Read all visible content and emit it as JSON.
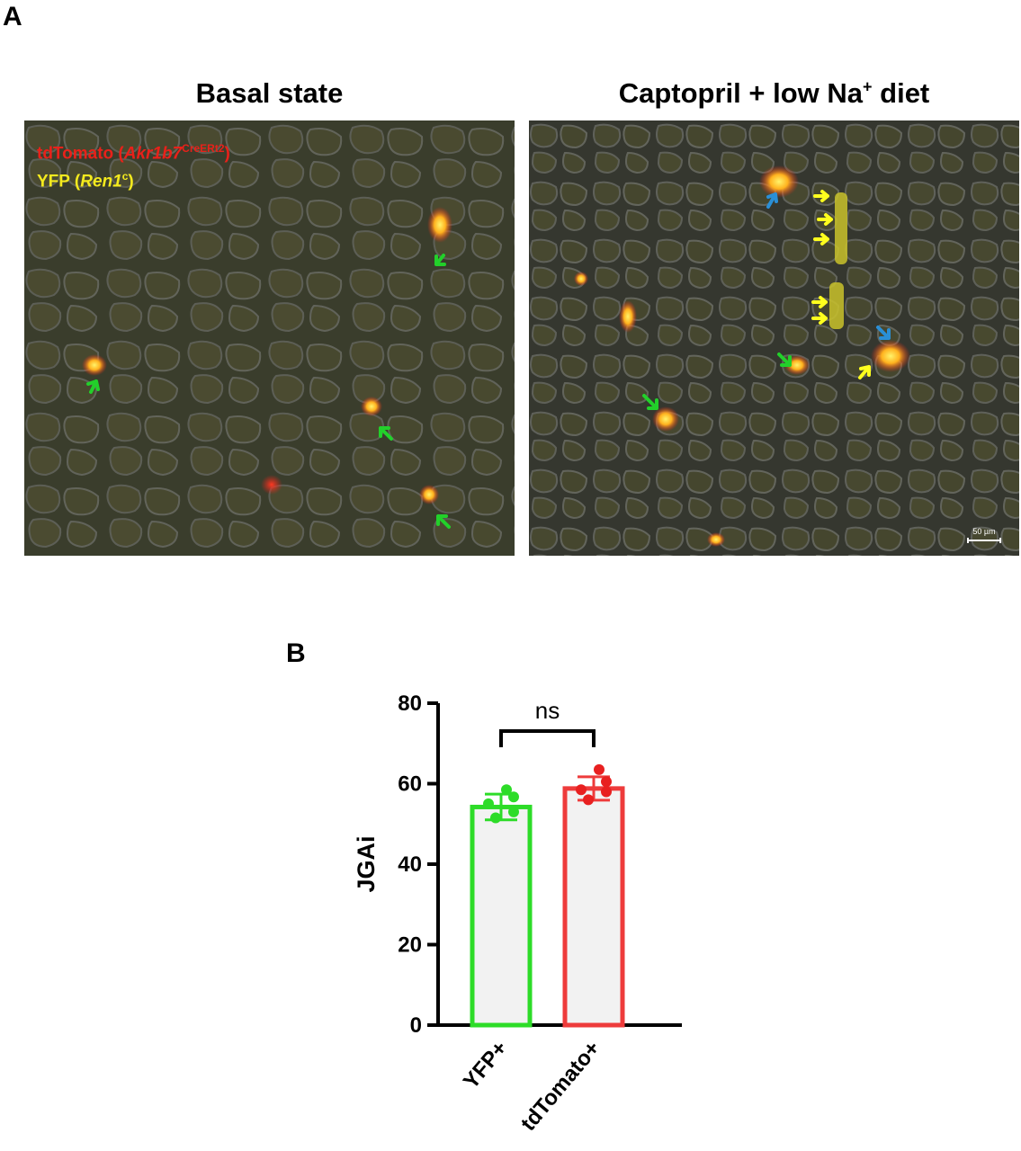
{
  "panel_a": {
    "letter": "A",
    "left_title": "Basal state",
    "right_title_main": "Captopril + low Na",
    "right_title_sup": "+",
    "right_title_end": " diet",
    "legend": {
      "line1_prefix": "tdTomato (",
      "line1_gene": "Akr1b7",
      "line1_sup": "CreERt2",
      "line1_suffix": ")",
      "line2_prefix": "YFP (",
      "line2_gene": "Ren1",
      "line2_sup": "c",
      "line2_suffix": ")",
      "red_color": "#e8211a",
      "yellow_color": "#f4ea1e"
    },
    "scale_bar": "50 µm",
    "arrow_colors": {
      "green": "#22d02a",
      "yellow": "#ffff1e",
      "blue": "#2a8fd6"
    }
  },
  "panel_b": {
    "letter": "B"
  },
  "chart_data": {
    "type": "bar",
    "categories": [
      "YFP+",
      "tdTomato+"
    ],
    "values": [
      54.2,
      58.8
    ],
    "error_sd": [
      3.2,
      2.9
    ],
    "points": [
      [
        58.5,
        56.7,
        55.0,
        53.0,
        51.5
      ],
      [
        63.5,
        60.5,
        58.5,
        58.0,
        56.0
      ]
    ],
    "bar_colors": [
      "#2ddc28",
      "#ee3b3b"
    ],
    "point_colors": [
      "#2ddc28",
      "#e82020"
    ],
    "bar_fill": "#f2f2f2",
    "ylabel": "JGAi",
    "xlabel": "",
    "ylim": [
      0,
      80
    ],
    "yticks": [
      0,
      20,
      40,
      60,
      80
    ],
    "significance": "ns"
  }
}
